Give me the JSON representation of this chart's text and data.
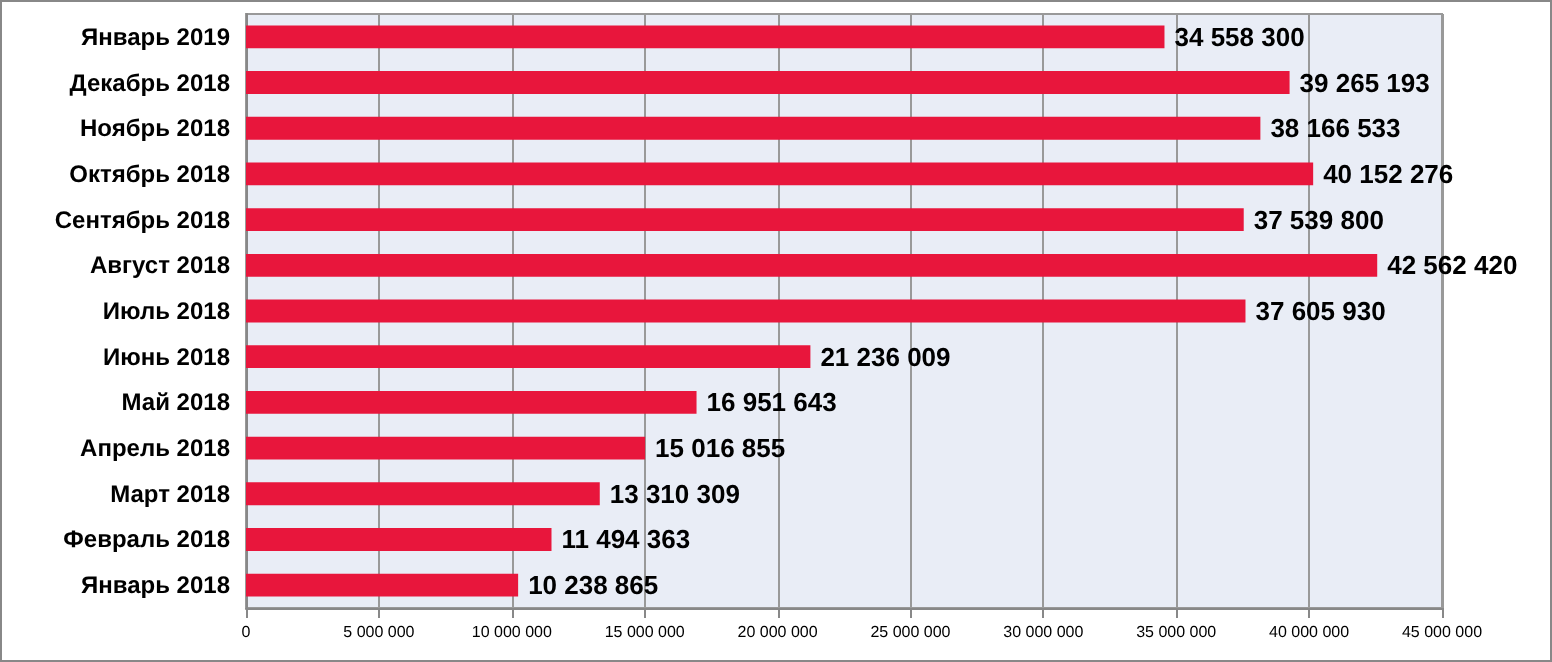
{
  "chart_data": {
    "type": "bar",
    "orientation": "horizontal",
    "categories": [
      "Январь 2019",
      "Декабрь 2018",
      "Ноябрь 2018",
      "Октябрь 2018",
      "Сентябрь 2018",
      "Август 2018",
      "Июль 2018",
      "Июнь 2018",
      "Май 2018",
      "Апрель 2018",
      "Март 2018",
      "Февраль 2018",
      "Январь 2018"
    ],
    "values": [
      34558300,
      39265193,
      38166533,
      40152276,
      37539800,
      42562420,
      37605930,
      21236009,
      16951643,
      15016855,
      13310309,
      11494363,
      10238865
    ],
    "value_labels": [
      "34 558 300",
      "39 265 193",
      "38 166 533",
      "40 152 276",
      "37 539 800",
      "42 562 420",
      "37 605 930",
      "21 236 009",
      "16 951 643",
      "15 016 855",
      "13 310 309",
      "11 494 363",
      "10 238 865"
    ],
    "color": "#e8163c",
    "xlim": [
      0,
      45000000
    ],
    "xticks": [
      0,
      {
        "value": 5000000,
        "label": "5 000 000"
      },
      {
        "value": 10000000,
        "label": "10 000 000"
      },
      {
        "value": 15000000,
        "label": "15 000 000"
      },
      {
        "value": 20000000,
        "label": "20 000 000"
      },
      {
        "value": 25000000,
        "label": "25 000 000"
      },
      {
        "value": 30000000,
        "label": "30 000 000"
      },
      {
        "value": 35000000,
        "label": "35 000 000"
      },
      {
        "value": 40000000,
        "label": "40 000 000"
      },
      {
        "value": 45000000,
        "label": "45 000 000"
      }
    ],
    "grid": "x"
  }
}
